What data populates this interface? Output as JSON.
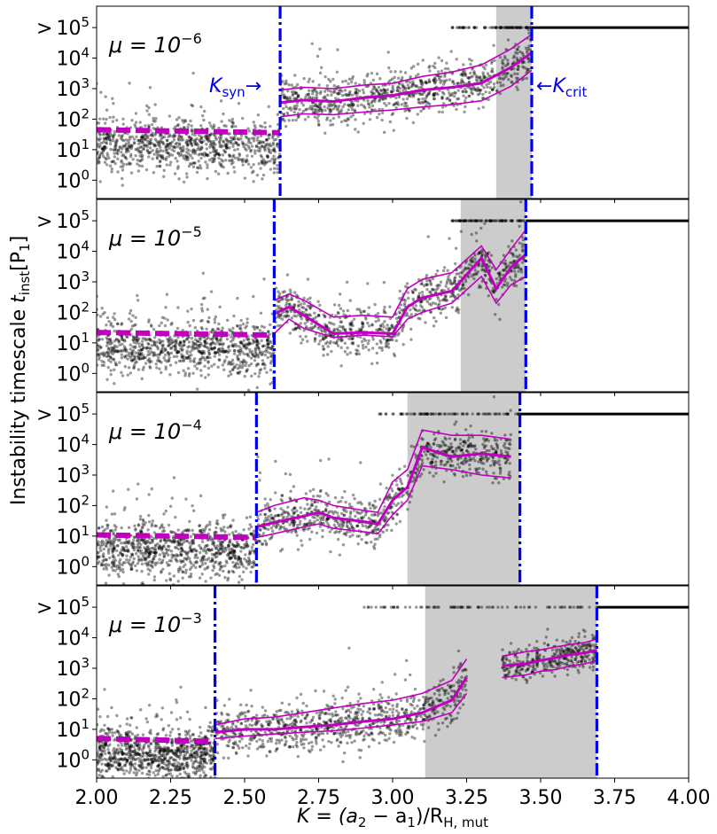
{
  "figure": {
    "ylabel_main": "Instability timescale ",
    "ylabel_math": "t",
    "ylabel_sub": "inst",
    "ylabel_unit": "[P",
    "ylabel_unit_sub": "1",
    "ylabel_unit_close": "]",
    "xlabel_prefix": "K = (a",
    "xlabel_sub2": "2",
    "xlabel_mid": " − a",
    "xlabel_sub1": "1",
    "xlabel_tail": ")/R",
    "xlabel_subH": "H, mut",
    "ksyn_label": "K",
    "ksyn_sub": "syn",
    "ksyn_arrow": "→",
    "kcrit_arrow": "←",
    "kcrit_label": "K",
    "kcrit_sub": "crit",
    "gt_prefix": ">"
  },
  "colors": {
    "points": "#000000",
    "median": "#c000c0",
    "k_lines": "#0000ee",
    "shade": "#cccccc"
  },
  "chart_data": [
    {
      "type": "scatter",
      "mu_label": "μ = 10",
      "mu_exp": "−6",
      "xlim": [
        2.0,
        4.0
      ],
      "ylim_log10": [
        -0.6,
        5.7
      ],
      "log_y": true,
      "k_syn": 2.62,
      "k_crit": 3.47,
      "shade": [
        3.35,
        3.47
      ],
      "plateau": {
        "x": [
          2.0,
          2.62
        ],
        "y": [
          45,
          36
        ]
      },
      "median": {
        "x": [
          2.62,
          2.7,
          2.8,
          2.9,
          3.0,
          3.1,
          3.2,
          3.3,
          3.4,
          3.47
        ],
        "y": [
          350,
          420,
          380,
          500,
          600,
          900,
          1100,
          1500,
          5000,
          15000
        ]
      },
      "upper": {
        "x": [
          2.62,
          2.7,
          2.8,
          2.9,
          3.0,
          3.1,
          3.2,
          3.3,
          3.4,
          3.47
        ],
        "y": [
          900,
          1100,
          1000,
          1300,
          1500,
          2500,
          3500,
          6000,
          20000,
          60000
        ]
      },
      "lower": {
        "x": [
          2.62,
          2.7,
          2.8,
          2.9,
          3.0,
          3.1,
          3.2,
          3.3,
          3.4,
          3.47
        ],
        "y": [
          120,
          150,
          140,
          170,
          200,
          250,
          300,
          400,
          1200,
          4000
        ]
      },
      "cap_start": 3.2
    },
    {
      "type": "scatter",
      "mu_label": "μ = 10",
      "mu_exp": "−5",
      "xlim": [
        2.0,
        4.0
      ],
      "ylim_log10": [
        -0.6,
        5.7
      ],
      "log_y": true,
      "k_syn": 2.6,
      "k_crit": 3.45,
      "shade": [
        3.23,
        3.45
      ],
      "plateau": {
        "x": [
          2.0,
          2.6
        ],
        "y": [
          22,
          18
        ]
      },
      "median": {
        "x": [
          2.6,
          2.65,
          2.7,
          2.8,
          2.9,
          3.0,
          3.05,
          3.1,
          3.2,
          3.3,
          3.35,
          3.4,
          3.45
        ],
        "y": [
          90,
          150,
          80,
          20,
          22,
          20,
          150,
          300,
          500,
          6000,
          600,
          3000,
          8000
        ]
      },
      "upper": {
        "x": [
          2.6,
          2.65,
          2.7,
          2.8,
          2.9,
          3.0,
          3.05,
          3.1,
          3.2,
          3.3,
          3.35,
          3.4,
          3.45
        ],
        "y": [
          250,
          400,
          250,
          70,
          80,
          70,
          600,
          1200,
          2000,
          15000,
          2500,
          12000,
          50000
        ]
      },
      "lower": {
        "x": [
          2.6,
          2.65,
          2.7,
          2.8,
          2.9,
          3.0,
          3.05,
          3.1,
          3.2,
          3.3,
          3.35,
          3.4,
          3.45
        ],
        "y": [
          20,
          60,
          30,
          15,
          18,
          16,
          60,
          100,
          200,
          1500,
          200,
          800,
          1500
        ]
      },
      "cap_start": 3.2
    },
    {
      "type": "scatter",
      "mu_label": "μ = 10",
      "mu_exp": "−4",
      "xlim": [
        2.0,
        4.0
      ],
      "ylim_log10": [
        -0.6,
        5.7
      ],
      "log_y": true,
      "k_syn": 2.54,
      "k_crit": 3.43,
      "shade": [
        3.05,
        3.43
      ],
      "plateau": {
        "x": [
          2.0,
          2.54
        ],
        "y": [
          11,
          9
        ]
      },
      "median": {
        "x": [
          2.54,
          2.6,
          2.7,
          2.75,
          2.8,
          2.9,
          2.95,
          3.0,
          3.05,
          3.1,
          3.2,
          3.3,
          3.4
        ],
        "y": [
          20,
          28,
          45,
          60,
          40,
          30,
          25,
          150,
          400,
          8000,
          4000,
          5000,
          4000
        ]
      },
      "upper": {
        "x": [
          2.54,
          2.6,
          2.7,
          2.75,
          2.8,
          2.9,
          2.95,
          3.0,
          3.05,
          3.1,
          3.2,
          3.3,
          3.4
        ],
        "y": [
          60,
          100,
          180,
          150,
          100,
          70,
          60,
          600,
          1500,
          30000,
          20000,
          20000,
          15000
        ]
      },
      "lower": {
        "x": [
          2.54,
          2.6,
          2.7,
          2.75,
          2.8,
          2.9,
          2.95,
          3.0,
          3.05,
          3.1,
          3.2,
          3.3,
          3.4
        ],
        "y": [
          9,
          12,
          20,
          25,
          18,
          14,
          12,
          50,
          150,
          2000,
          1500,
          1000,
          800
        ]
      },
      "cap_start": 2.95
    },
    {
      "type": "scatter",
      "mu_label": "μ = 10",
      "mu_exp": "−3",
      "xlim": [
        2.0,
        4.0
      ],
      "ylim_log10": [
        -0.6,
        5.7
      ],
      "log_y": true,
      "k_syn": 2.4,
      "k_crit": 3.69,
      "shade": [
        3.11,
        3.69
      ],
      "plateau": {
        "x": [
          2.0,
          2.4
        ],
        "y": [
          5,
          4
        ]
      },
      "median": {
        "x": [
          2.4,
          2.5,
          2.6,
          2.7,
          2.8,
          2.9,
          3.0,
          3.1,
          3.2,
          3.25
        ],
        "y": [
          8,
          10,
          10,
          12,
          14,
          18,
          22,
          35,
          90,
          500
        ]
      },
      "upper": {
        "x": [
          2.4,
          2.5,
          2.6,
          2.7,
          2.8,
          2.9,
          3.0,
          3.1,
          3.2,
          3.25
        ],
        "y": [
          14,
          22,
          25,
          35,
          50,
          70,
          90,
          150,
          400,
          2000
        ]
      },
      "lower": {
        "x": [
          2.4,
          2.5,
          2.6,
          2.7,
          2.8,
          2.9,
          3.0,
          3.1,
          3.2,
          3.25
        ],
        "y": [
          5,
          6,
          7,
          8,
          9,
          11,
          14,
          18,
          35,
          150
        ]
      },
      "median2": {
        "x": [
          3.37,
          3.45,
          3.5,
          3.55,
          3.6,
          3.65,
          3.69
        ],
        "y": [
          1200,
          1400,
          1800,
          2200,
          2800,
          3200,
          4000
        ]
      },
      "upper2": {
        "x": [
          3.37,
          3.45,
          3.5,
          3.55,
          3.6,
          3.65,
          3.69
        ],
        "y": [
          2500,
          3500,
          4000,
          5000,
          6000,
          7000,
          9000
        ]
      },
      "lower2": {
        "x": [
          3.37,
          3.45,
          3.5,
          3.55,
          3.6,
          3.65,
          3.69
        ],
        "y": [
          500,
          600,
          800,
          900,
          1200,
          1400,
          1800
        ]
      },
      "cap_start": 2.9
    }
  ],
  "axes": {
    "x_ticks": [
      "2.00",
      "2.25",
      "2.50",
      "2.75",
      "3.00",
      "3.25",
      "3.50",
      "3.75",
      "4.00"
    ],
    "x_tick_values": [
      2.0,
      2.25,
      2.5,
      2.75,
      3.0,
      3.25,
      3.5,
      3.75,
      4.0
    ],
    "y_ticks": [
      {
        "base": "10",
        "exp": "0"
      },
      {
        "base": "10",
        "exp": "1"
      },
      {
        "base": "10",
        "exp": "2"
      },
      {
        "base": "10",
        "exp": "3"
      },
      {
        "base": "10",
        "exp": "4"
      },
      {
        "base": "10",
        "exp": "5"
      }
    ]
  }
}
